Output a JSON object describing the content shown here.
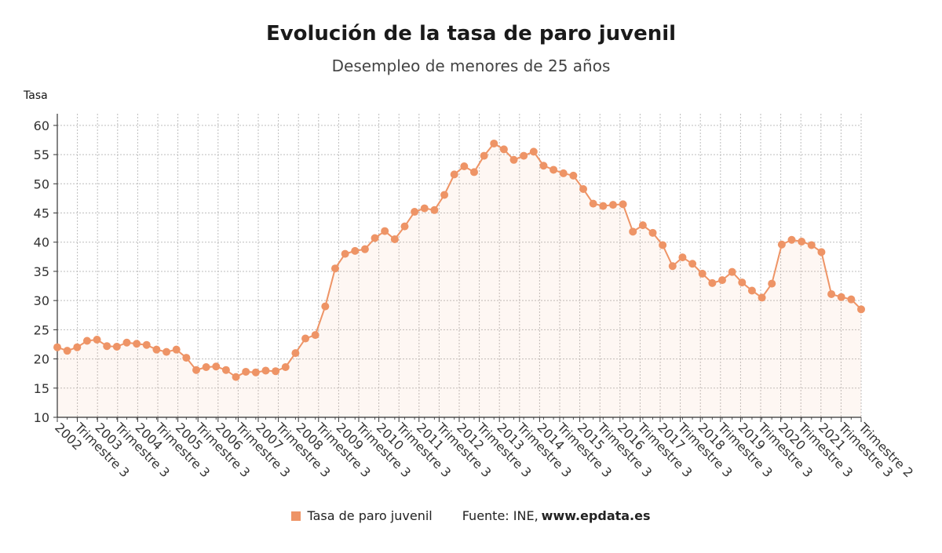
{
  "chart_data": {
    "type": "area",
    "title": "Evolución de la tasa de paro juvenil",
    "subtitle": "Desempleo de menores de 25 años",
    "ylabel": "Tasa",
    "xlabel": "",
    "ylim": [
      10,
      62
    ],
    "yticks": [
      10,
      15,
      20,
      25,
      30,
      35,
      40,
      45,
      50,
      55,
      60
    ],
    "grid": true,
    "legend_position": "bottom",
    "color": "#ee9466",
    "xtick_labels": [
      "2002",
      "Trimestre 3",
      "2003",
      "Trimestre 3",
      "2004",
      "Trimestre 3",
      "2005",
      "Trimestre 3",
      "2006",
      "Trimestre 3",
      "2007",
      "Trimestre 3",
      "2008",
      "Trimestre 3",
      "2009",
      "Trimestre 3",
      "2010",
      "Trimestre 3",
      "2011",
      "Trimestre 3",
      "2012",
      "Trimestre 3",
      "2013",
      "Trimestre 3",
      "2014",
      "Trimestre 3",
      "2015",
      "Trimestre 3",
      "2016",
      "Trimestre 3",
      "2017",
      "Trimestre 3",
      "2018",
      "Trimestre 3",
      "2019",
      "Trimestre 3",
      "2020",
      "Trimestre 3",
      "2021",
      "Trimestre 3",
      "Trimestre 2"
    ],
    "series": [
      {
        "name": "Tasa de paro juvenil",
        "values": [
          22.0,
          21.4,
          22.0,
          23.1,
          23.3,
          22.2,
          22.1,
          22.8,
          22.6,
          22.4,
          21.6,
          21.2,
          21.6,
          20.2,
          18.1,
          18.6,
          18.7,
          18.1,
          16.9,
          17.8,
          17.7,
          18.0,
          17.9,
          18.6,
          21.0,
          23.5,
          24.1,
          29.0,
          35.5,
          38.0,
          38.5,
          38.8,
          40.7,
          41.9,
          40.5,
          42.7,
          45.2,
          45.8,
          45.5,
          48.1,
          51.6,
          53.0,
          52.0,
          54.8,
          56.9,
          55.9,
          54.1,
          54.8,
          55.5,
          53.1,
          52.4,
          51.8,
          51.4,
          49.1,
          46.6,
          46.2,
          46.4,
          46.5,
          41.8,
          42.9,
          41.6,
          39.5,
          35.9,
          37.4,
          36.3,
          34.6,
          33.0,
          33.5,
          34.9,
          33.1,
          31.7,
          30.5,
          32.9,
          39.6,
          40.4,
          40.1,
          39.5,
          38.3,
          31.1,
          30.6,
          30.2,
          28.5
        ]
      }
    ]
  },
  "legend": {
    "label": "Tasa de paro juvenil"
  },
  "source": {
    "prefix": "Fuente: INE,",
    "site": "www.epdata.es"
  }
}
